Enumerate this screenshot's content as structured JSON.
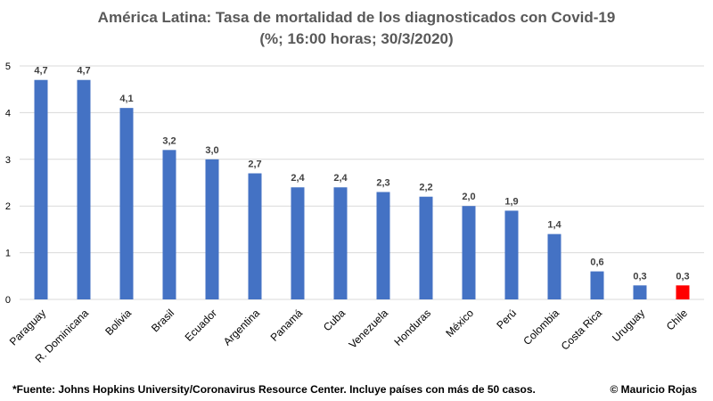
{
  "chart_data": {
    "type": "bar",
    "title": "América Latina: Tasa de mortalidad de los diagnosticados con Covid-19",
    "subtitle": "(%; 16:00 horas; 30/3/2020)",
    "xlabel": "",
    "ylabel": "",
    "ylim": [
      0,
      5
    ],
    "yticks": [
      "0",
      "1",
      "2",
      "3",
      "4",
      "5"
    ],
    "grid": true,
    "categories": [
      "Paraguay",
      "R. Dominicana",
      "Bolivia",
      "Brasil",
      "Ecuador",
      "Argentina",
      "Panamá",
      "Cuba",
      "Venezuela",
      "Honduras",
      "México",
      "Perú",
      "Colombia",
      "Costa Rica",
      "Uruguay",
      "Chile"
    ],
    "values": [
      4.7,
      4.7,
      4.1,
      3.2,
      3.0,
      2.7,
      2.4,
      2.4,
      2.3,
      2.2,
      2.0,
      1.9,
      1.4,
      0.6,
      0.3,
      0.3
    ],
    "value_labels": [
      "4,7",
      "4,7",
      "4,1",
      "3,2",
      "3,0",
      "2,7",
      "2,4",
      "2,4",
      "2,3",
      "2,2",
      "2,0",
      "1,9",
      "1,4",
      "0,6",
      "0,3",
      "0,3"
    ],
    "bar_color": "#4472C4",
    "highlight": {
      "category": "Chile",
      "color": "#FF0000"
    }
  },
  "footer": {
    "source": "*Fuente: Johns Hopkins University/Coronavirus Resource Center. Incluye países con más de 50 casos.",
    "credit": "© Mauricio Rojas"
  },
  "colors": {
    "grid": "#D9D9D9",
    "title_text": "#595959",
    "tick_text": "#000000",
    "label_text": "#404040"
  }
}
